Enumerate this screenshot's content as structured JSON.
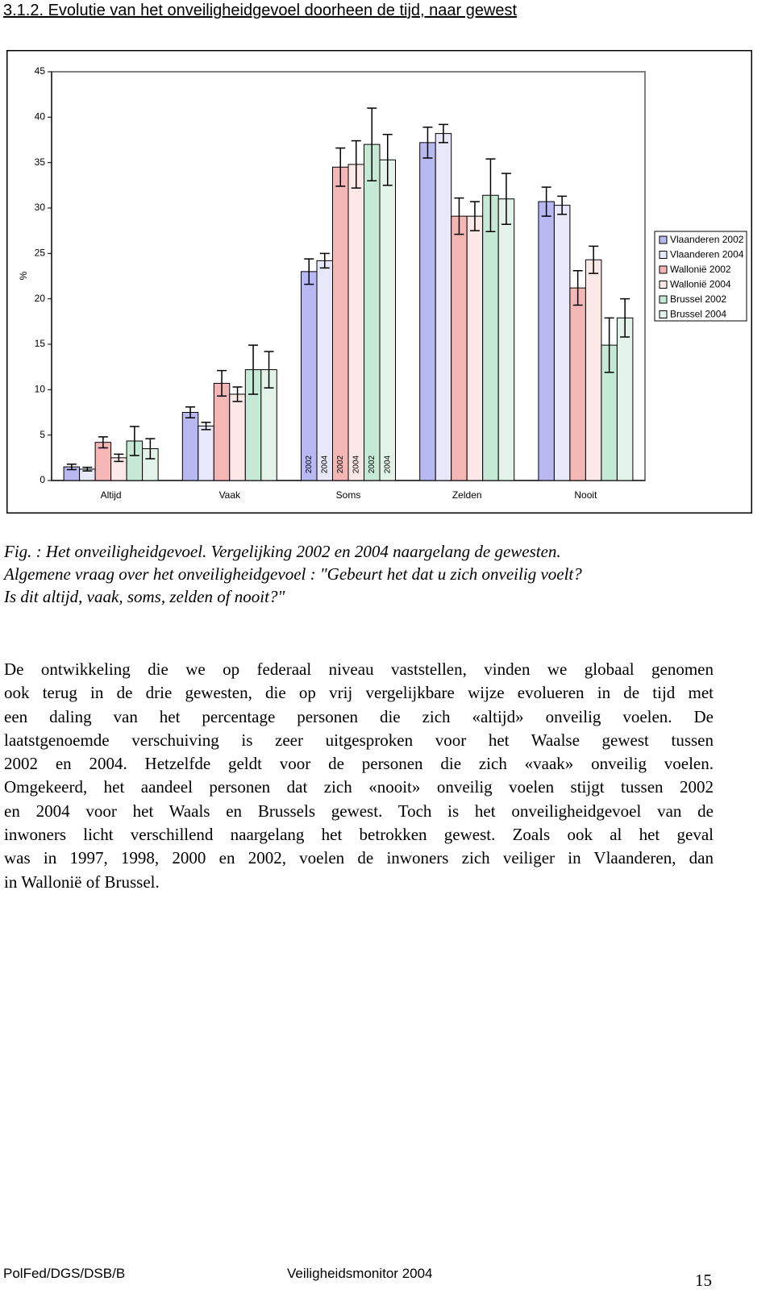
{
  "header": {
    "title": "3.1.2. Evolutie van het onveiligheidgevoel doorheen de tijd, naar gewest"
  },
  "chart_data": {
    "type": "bar",
    "y_label": "%",
    "categories": [
      "Altijd",
      "Vaak",
      "Soms",
      "Zelden",
      "Nooit"
    ],
    "series": [
      {
        "name": "Vlaanderen 2002",
        "color": "#b8b8f2",
        "values": [
          1.5,
          7.5,
          23.0,
          37.2,
          30.7
        ],
        "errors": [
          0.3,
          0.6,
          1.4,
          1.7,
          1.6
        ]
      },
      {
        "name": "Vlaanderen 2004",
        "color": "#e8e8fb",
        "values": [
          1.25,
          6.0,
          24.2,
          38.2,
          30.3
        ],
        "errors": [
          0.2,
          0.4,
          0.8,
          1.0,
          1.0
        ]
      },
      {
        "name": "Wallonië 2002",
        "color": "#f5b6b6",
        "values": [
          4.2,
          10.7,
          34.5,
          29.1,
          21.2
        ],
        "errors": [
          0.6,
          1.4,
          2.1,
          2.0,
          1.9
        ]
      },
      {
        "name": "Wallonië 2004",
        "color": "#fde8e8",
        "values": [
          2.5,
          9.5,
          34.8,
          29.1,
          24.3
        ],
        "errors": [
          0.4,
          0.8,
          2.6,
          1.6,
          1.5
        ]
      },
      {
        "name": "Brussel 2002",
        "color": "#c6e9d6",
        "values": [
          4.35,
          12.2,
          37.0,
          31.4,
          14.9
        ],
        "errors": [
          1.6,
          2.7,
          4.0,
          4.0,
          3.0
        ]
      },
      {
        "name": "Brussel 2004",
        "color": "#e4f3ea",
        "values": [
          3.5,
          12.2,
          35.3,
          31.0,
          17.9
        ],
        "errors": [
          1.1,
          2.0,
          2.8,
          2.8,
          2.1
        ]
      }
    ],
    "bar_labels": [
      "2002",
      "2004",
      "2002",
      "2004",
      "2002",
      "2004"
    ],
    "ylim": [
      0,
      45
    ],
    "yticks": [
      0,
      5,
      10,
      15,
      20,
      25,
      30,
      35,
      40,
      45
    ],
    "grid": false
  },
  "caption": [
    "Fig. : Het onveiligheidgevoel. Vergelijking 2002 en 2004 naargelang de gewesten.",
    "Algemene vraag over het onveiligheidgevoel : \"Gebeurt het dat u zich onveilig voelt?",
    "Is dit altijd, vaak, soms, zelden of nooit?\""
  ],
  "paragraph": [
    "De ontwikkeling die we op federaal niveau vaststellen, vinden we globaal genomen",
    "ook terug in de drie gewesten, die op vrij vergelijkbare wijze evolueren in de tijd met",
    "een daling van het percentage personen die zich «altijd» onveilig voelen. De",
    "laatstgenoemde verschuiving is zeer uitgesproken voor het Waalse gewest tussen",
    "2002 en 2004. Hetzelfde geldt voor de personen die zich «vaak» onveilig voelen.",
    "Omgekeerd, het aandeel personen dat zich «nooit» onveilig voelen stijgt tussen 2002",
    "en 2004 voor het Waals en Brussels gewest. Toch is het onveiligheidgevoel van de",
    "inwoners licht verschillend naargelang het betrokken gewest.  Zoals ook al het geval",
    "was in 1997, 1998, 2000 en 2002, voelen de inwoners zich veiliger in Vlaanderen, dan",
    "in Wallonië of Brussel."
  ],
  "footer": {
    "left": "PolFed/DGS/DSB/B",
    "center": "Veiligheidsmonitor 2004",
    "page": "15"
  }
}
